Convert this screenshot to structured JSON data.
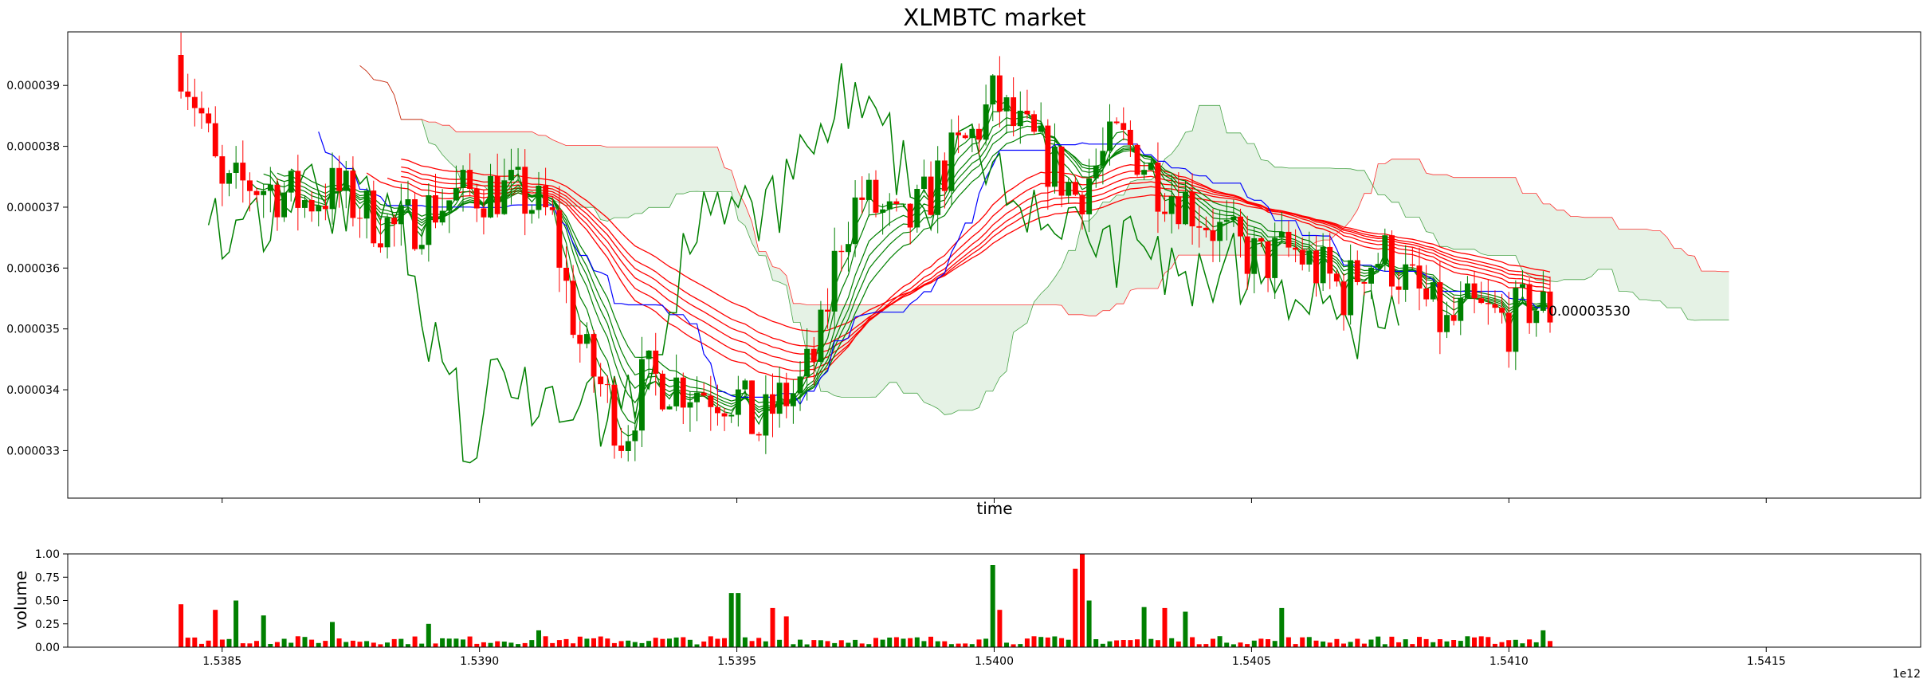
{
  "chart_data": [
    {
      "type": "candlestick",
      "title": "XLMBTC market",
      "xlabel": "time",
      "ylabel": "",
      "x_unit": "ms epoch (×1e12)",
      "xlim": [
        1538200000000.0,
        1541800000000.0
      ],
      "ylim": [
        3.222e-05,
        3.988e-05
      ],
      "yticks": [
        3.3e-05,
        3.4e-05,
        3.5e-05,
        3.6e-05,
        3.7e-05,
        3.8e-05,
        3.9e-05
      ],
      "ytick_labels": [
        "0.000033",
        "0.000034",
        "0.000035",
        "0.000036",
        "0.000037",
        "0.000038",
        "0.000039"
      ],
      "xticks": [
        1538500000000.0,
        1539000000000.0,
        1539500000000.0,
        1540000000000.0,
        1540500000000.0,
        1541000000000.0,
        1541500000000.0
      ],
      "annotation": "0.00003530",
      "anchors": [
        [
          1538420000000.0,
          3.94e-05
        ],
        [
          1538460000000.0,
          3.85e-05
        ],
        [
          1538500000000.0,
          3.72e-05
        ],
        [
          1538550000000.0,
          3.74e-05
        ],
        [
          1538600000000.0,
          3.73e-05
        ],
        [
          1538660000000.0,
          3.71e-05
        ],
        [
          1538720000000.0,
          3.73e-05
        ],
        [
          1538780000000.0,
          3.69e-05
        ],
        [
          1538840000000.0,
          3.66e-05
        ],
        [
          1538900000000.0,
          3.695e-05
        ],
        [
          1538960000000.0,
          3.72e-05
        ],
        [
          1539020000000.0,
          3.73e-05
        ],
        [
          1539080000000.0,
          3.72e-05
        ],
        [
          1539140000000.0,
          3.68e-05
        ],
        [
          1539170000000.0,
          3.56e-05
        ],
        [
          1539200000000.0,
          3.46e-05
        ],
        [
          1539240000000.0,
          3.4e-05
        ],
        [
          1539280000000.0,
          3.32e-05
        ],
        [
          1539320000000.0,
          3.42e-05
        ],
        [
          1539380000000.0,
          3.41e-05
        ],
        [
          1539440000000.0,
          3.4e-05
        ],
        [
          1539500000000.0,
          3.39e-05
        ],
        [
          1539540000000.0,
          3.33e-05
        ],
        [
          1539580000000.0,
          3.38e-05
        ],
        [
          1539620000000.0,
          3.4e-05
        ],
        [
          1539660000000.0,
          3.47e-05
        ],
        [
          1539700000000.0,
          3.65e-05
        ],
        [
          1539740000000.0,
          3.72e-05
        ],
        [
          1539780000000.0,
          3.69e-05
        ],
        [
          1539820000000.0,
          3.66e-05
        ],
        [
          1539860000000.0,
          3.7e-05
        ],
        [
          1539900000000.0,
          3.76e-05
        ],
        [
          1539960000000.0,
          3.82e-05
        ],
        [
          1540000000000.0,
          3.88e-05
        ],
        [
          1540040000000.0,
          3.83e-05
        ],
        [
          1540080000000.0,
          3.8e-05
        ],
        [
          1540120000000.0,
          3.76e-05
        ],
        [
          1540160000000.0,
          3.72e-05
        ],
        [
          1540200000000.0,
          3.77e-05
        ],
        [
          1540240000000.0,
          3.81e-05
        ],
        [
          1540280000000.0,
          3.79e-05
        ],
        [
          1540320000000.0,
          3.74e-05
        ],
        [
          1540360000000.0,
          3.72e-05
        ],
        [
          1540400000000.0,
          3.69e-05
        ],
        [
          1540460000000.0,
          3.64e-05
        ],
        [
          1540520000000.0,
          3.61e-05
        ],
        [
          1540580000000.0,
          3.63e-05
        ],
        [
          1540640000000.0,
          3.59e-05
        ],
        [
          1540680000000.0,
          3.56e-05
        ],
        [
          1540720000000.0,
          3.61e-05
        ],
        [
          1540760000000.0,
          3.62e-05
        ],
        [
          1540800000000.0,
          3.58e-05
        ],
        [
          1540840000000.0,
          3.54e-05
        ],
        [
          1540880000000.0,
          3.5e-05
        ],
        [
          1540920000000.0,
          3.53e-05
        ],
        [
          1540960000000.0,
          3.52e-05
        ],
        [
          1541000000000.0,
          3.51e-05
        ],
        [
          1541040000000.0,
          3.54e-05
        ],
        [
          1541080000000.0,
          3.53e-05
        ]
      ],
      "n_candles": 200,
      "x_start": 1538420000000.0,
      "x_end": 1541080000000.0,
      "ema_color": "#008000",
      "slow_ma_color": "#ff0000",
      "ichimoku_span_a_color": "#008000",
      "ichimoku_span_b_color": "#ff0000",
      "kijun_color": "#0000ff",
      "up_color": "#008000",
      "down_color": "#ff0000"
    },
    {
      "type": "bar",
      "title": "",
      "ylabel": "volume",
      "ylim": [
        0,
        1.0
      ],
      "yticks": [
        0.0,
        0.25,
        0.5,
        0.75,
        1.0
      ],
      "ytick_labels": [
        "0.00",
        "0.25",
        "0.50",
        "0.75",
        "1.00"
      ],
      "xticks": [
        1538500000000.0,
        1539000000000.0,
        1539500000000.0,
        1540000000000.0,
        1540500000000.0,
        1541000000000.0,
        1541500000000.0
      ],
      "xtick_labels": [
        "1.5385",
        "1.5390",
        "1.5395",
        "1.5400",
        "1.5405",
        "1.5410",
        "1.5415"
      ],
      "offset_label": "1e12",
      "spikes": [
        [
          0,
          0.46
        ],
        [
          5,
          0.4
        ],
        [
          8,
          0.5
        ],
        [
          12,
          0.34
        ],
        [
          22,
          0.27
        ],
        [
          36,
          0.25
        ],
        [
          52,
          0.18
        ],
        [
          80,
          0.58
        ],
        [
          81,
          0.58
        ],
        [
          86,
          0.42
        ],
        [
          88,
          0.33
        ],
        [
          118,
          0.88
        ],
        [
          119,
          0.4
        ],
        [
          130,
          0.84
        ],
        [
          131,
          1.0
        ],
        [
          132,
          0.5
        ],
        [
          140,
          0.43
        ],
        [
          143,
          0.42
        ],
        [
          146,
          0.38
        ],
        [
          160,
          0.42
        ],
        [
          198,
          0.18
        ]
      ]
    }
  ]
}
